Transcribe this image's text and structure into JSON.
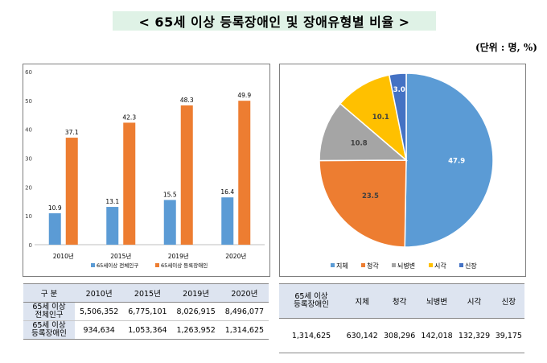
{
  "title": "< 65세 이상 등록장애인 및 장애유형별 비율 >",
  "unit": "(단위 : 명, %)",
  "chart_data": [
    {
      "type": "bar",
      "categories": [
        "2010년",
        "2015년",
        "2019년",
        "2020년"
      ],
      "series": [
        {
          "name": "65세이상 전체인구",
          "values": [
            10.9,
            13.1,
            15.5,
            16.4
          ],
          "color": "#5b9bd5"
        },
        {
          "name": "65세이상 등록장애인",
          "values": [
            37.1,
            42.3,
            48.3,
            49.9
          ],
          "color": "#ed7d31"
        }
      ],
      "yticks": [
        "0",
        "10",
        "20",
        "30",
        "40",
        "50",
        "60"
      ],
      "ylim": [
        0,
        60
      ],
      "grid": false,
      "legend": "bottom"
    },
    {
      "type": "pie",
      "labels": [
        "지체",
        "청각",
        "뇌병변",
        "시각",
        "신장"
      ],
      "values": [
        47.9,
        23.5,
        10.8,
        10.1,
        3.0
      ],
      "value_labels": [
        "47.9",
        "23.5",
        "10.8",
        "10.1",
        "3.0"
      ],
      "colors": [
        "#5b9bd5",
        "#ed7d31",
        "#a5a5a5",
        "#ffc000",
        "#4472c4"
      ],
      "legend": "bottom"
    }
  ],
  "left_table": {
    "header": [
      "구  분",
      "2010년",
      "2015년",
      "2019년",
      "2020년"
    ],
    "rows": [
      {
        "label1": "65세 이상",
        "label2": "전체인구",
        "values": [
          "5,506,352",
          "6,775,101",
          "8,026,915",
          "8,496,077"
        ]
      },
      {
        "label1": "65세 이상",
        "label2": "등록장애인",
        "values": [
          "934,634",
          "1,053,364",
          "1,263,952",
          "1,314,625"
        ]
      }
    ]
  },
  "right_table": {
    "header1": "65세 이상",
    "header2": "등록장애인",
    "header": [
      "지체",
      "청각",
      "뇌병변",
      "시각",
      "신장"
    ],
    "values": [
      "1,314,625",
      "630,142",
      "308,296",
      "142,018",
      "132,329",
      "39,175"
    ]
  }
}
